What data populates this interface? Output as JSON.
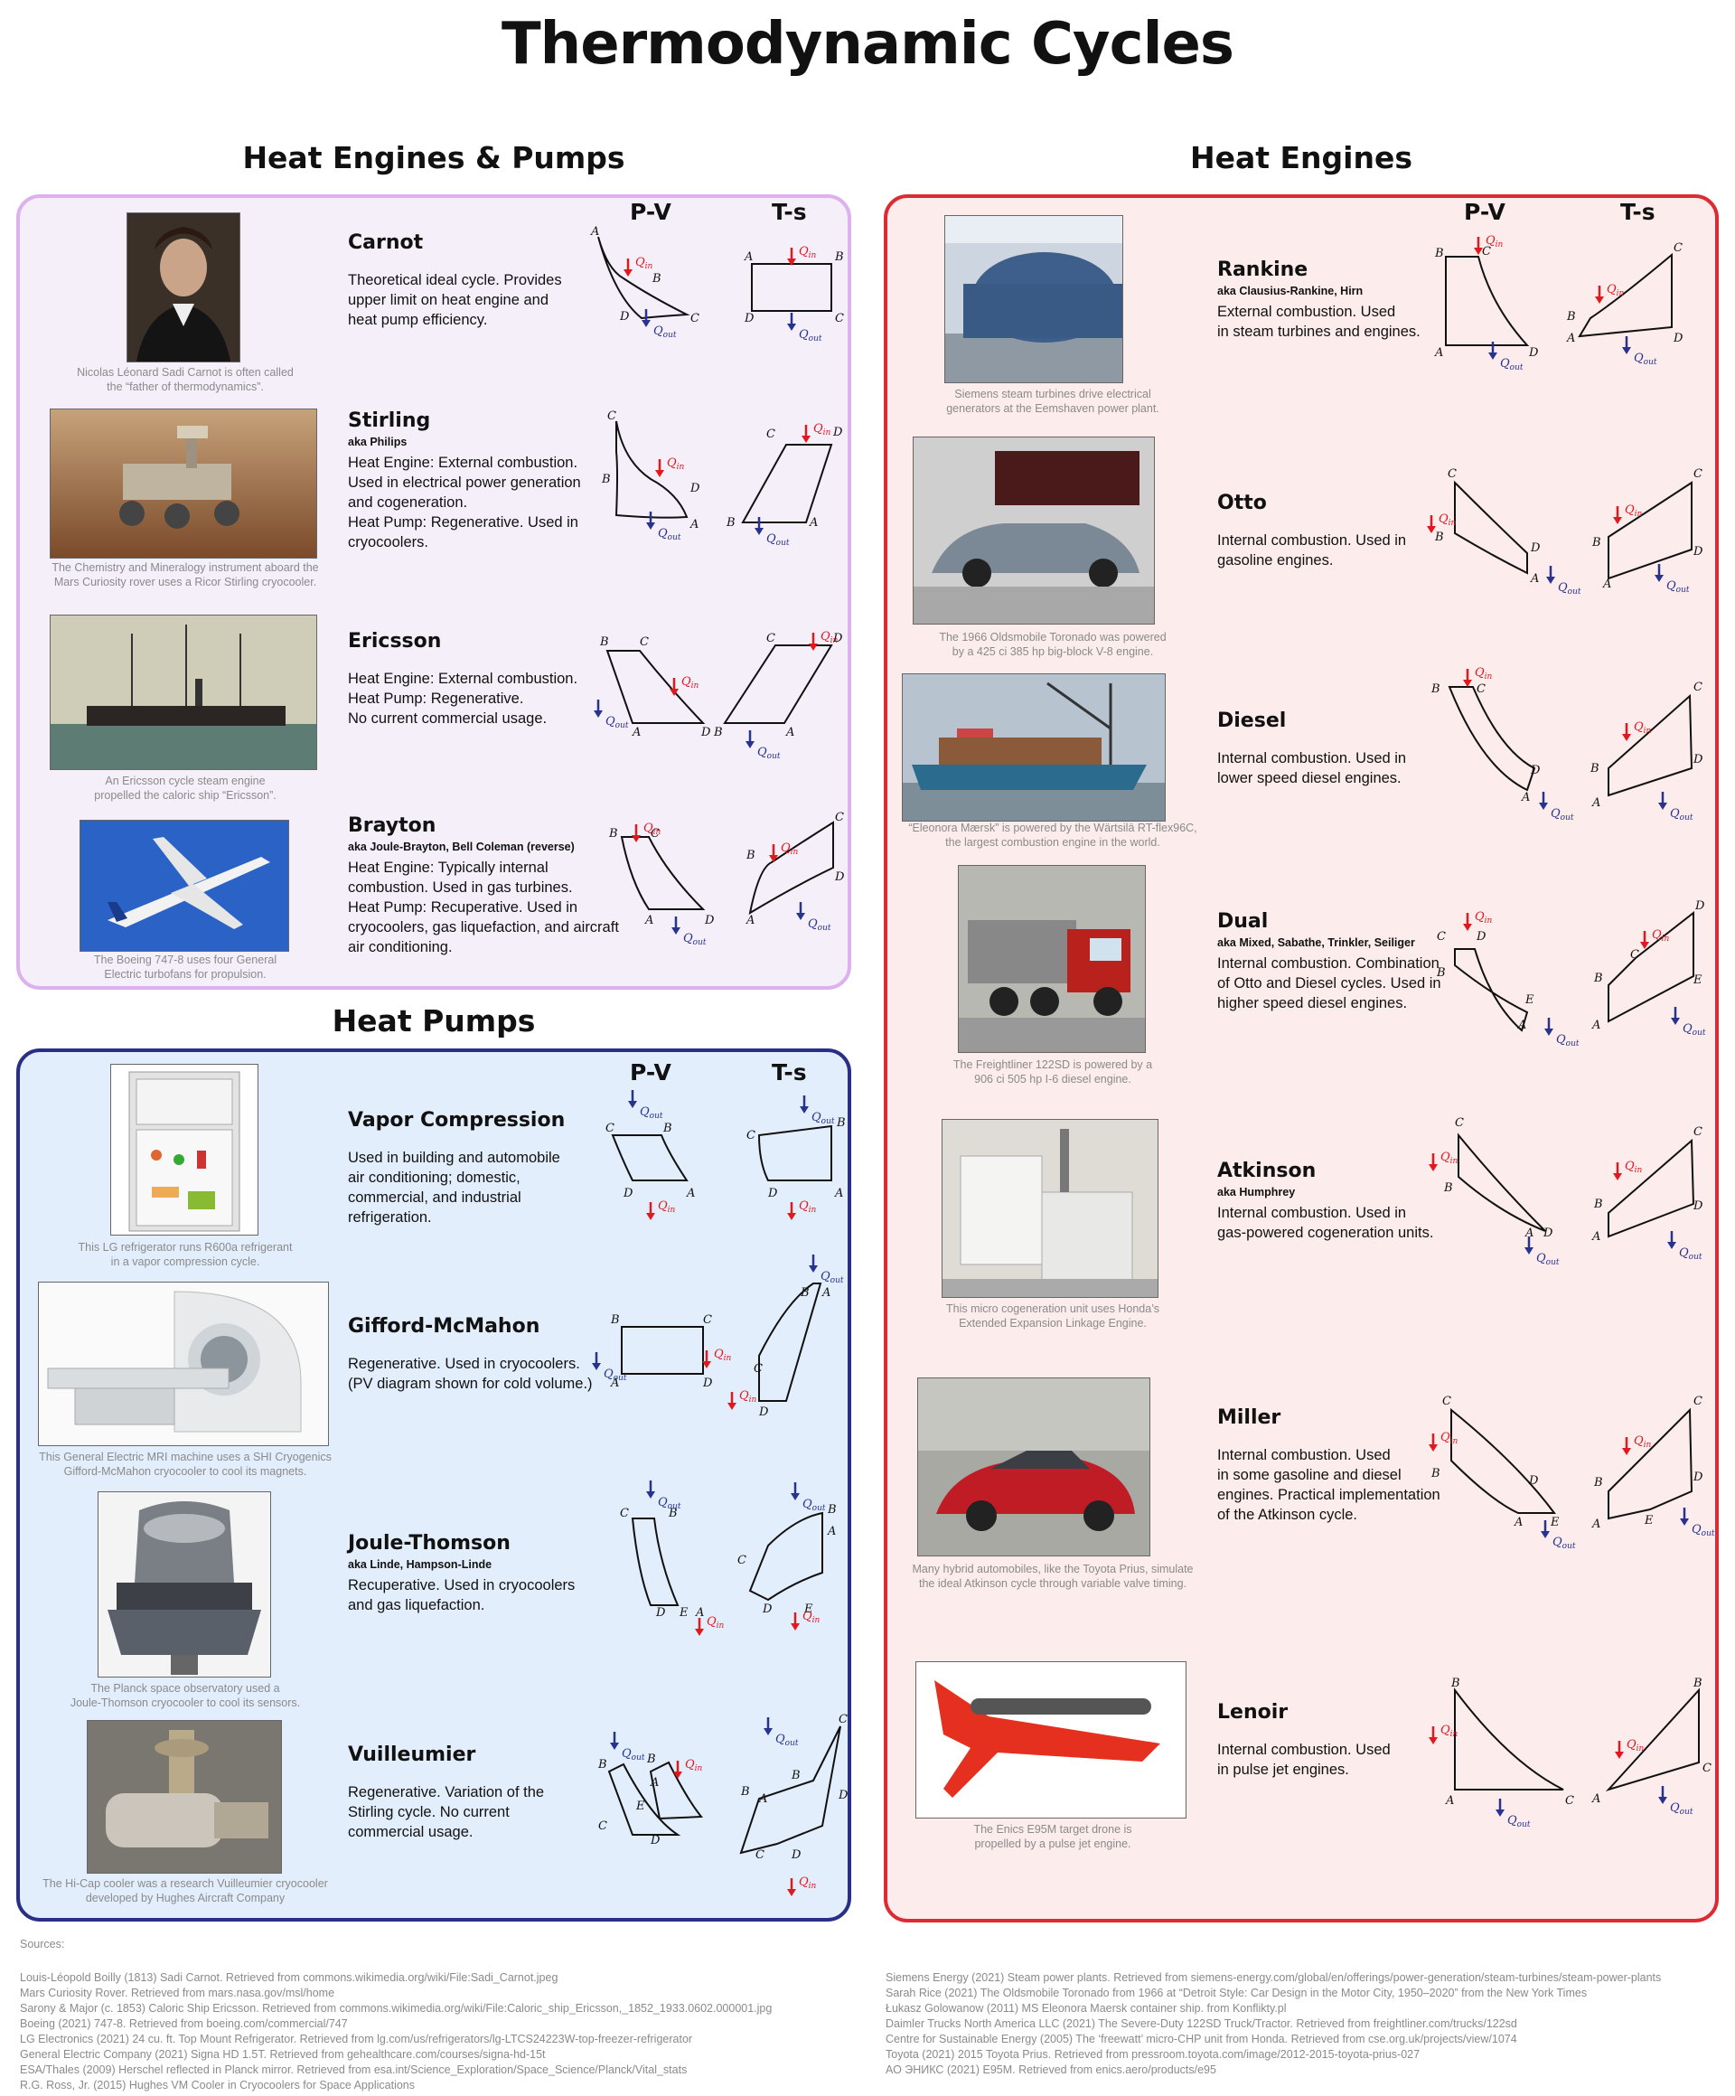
{
  "title": "Thermodynamic Cycles",
  "sections": {
    "engines_pumps": "Heat Engines & Pumps",
    "heat_engines": "Heat Engines",
    "heat_pumps": "Heat Pumps"
  },
  "axis_labels": {
    "pv": "P-V",
    "ts": "T-s"
  },
  "heat_labels": {
    "q": "Q",
    "in": "in",
    "out": "out"
  },
  "colors": {
    "in_arrow": "#e0191f",
    "out_arrow": "#27338e",
    "purple_border": "#dcb1ee",
    "blue_border": "#2a2f86",
    "red_border": "#dc2b33"
  },
  "cycles": {
    "carnot": {
      "name": "Carnot",
      "aka": "",
      "desc": [
        "Theoretical ideal cycle. Provides",
        "upper limit on heat engine and",
        "heat pump efficiency."
      ],
      "caption": [
        "Nicolas Léonard Sadi Carnot is often called",
        "the “father of thermodynamics”."
      ]
    },
    "stirling": {
      "name": "Stirling",
      "aka": "aka Philips",
      "desc": [
        "Heat Engine: External combustion.",
        "Used in electrical power generation",
        "and cogeneration.",
        "Heat Pump: Regenerative. Used in",
        "cryocoolers."
      ],
      "caption": [
        "The Chemistry and Mineralogy instrument aboard the",
        "Mars Curiosity rover uses a Ricor Stirling cryocooler."
      ]
    },
    "ericsson": {
      "name": "Ericsson",
      "aka": "",
      "desc": [
        "Heat Engine: External combustion.",
        "Heat Pump: Regenerative.",
        "No current commercial usage."
      ],
      "caption": [
        "An Ericsson cycle steam engine",
        "propelled the caloric ship “Ericsson”."
      ]
    },
    "brayton": {
      "name": "Brayton",
      "aka": "aka Joule-Brayton, Bell Coleman (reverse)",
      "desc": [
        "Heat Engine: Typically internal",
        "combustion. Used in gas turbines.",
        "Heat Pump: Recuperative. Used in",
        "cryocoolers, gas liquefaction, and aircraft",
        "air conditioning."
      ],
      "caption": [
        "The Boeing 747-8 uses four General",
        "Electric turbofans for propulsion."
      ]
    },
    "vapor": {
      "name": "Vapor Compression",
      "aka": "",
      "desc": [
        "Used in building and automobile",
        "air conditioning; domestic,",
        "commercial, and industrial",
        "refrigeration."
      ],
      "caption": [
        "This LG refrigerator runs R600a refrigerant",
        "in a vapor compression cycle."
      ]
    },
    "gifford": {
      "name": "Gifford-McMahon",
      "aka": "",
      "desc": [
        "Regenerative. Used in cryocoolers.",
        "(PV diagram shown for cold volume.)"
      ],
      "caption": [
        "This General Electric MRI machine uses a SHI Cryogenics",
        "Gifford-McMahon cryocooler to cool its magnets."
      ]
    },
    "joule": {
      "name": "Joule-Thomson",
      "aka": "aka Linde, Hampson-Linde",
      "desc": [
        "Recuperative. Used in cryocoolers",
        "and gas liquefaction."
      ],
      "caption": [
        "The Planck space observatory used a",
        "Joule-Thomson cryocooler to cool its sensors."
      ]
    },
    "vuilleumier": {
      "name": "Vuilleumier",
      "aka": "",
      "desc": [
        "Regenerative. Variation of the",
        "Stirling cycle. No current",
        "commercial usage."
      ],
      "caption": [
        "The Hi-Cap cooler was a research Vuilleumier cryocooler",
        "developed by Hughes Aircraft Company"
      ]
    },
    "rankine": {
      "name": "Rankine",
      "aka": "aka Clausius-Rankine, Hirn",
      "desc": [
        "External combustion. Used",
        "in steam turbines and engines."
      ],
      "caption": [
        "Siemens steam turbines drive electrical",
        "generators at the Eemshaven power plant."
      ]
    },
    "otto": {
      "name": "Otto",
      "aka": "",
      "desc": [
        "Internal combustion. Used in",
        "gasoline engines."
      ],
      "caption": [
        "The 1966 Oldsmobile Toronado was powered",
        "by a 425 ci 385 hp big-block V-8 engine."
      ]
    },
    "diesel": {
      "name": "Diesel",
      "aka": "",
      "desc": [
        "Internal combustion. Used in",
        "lower speed diesel engines."
      ],
      "caption": [
        "“Eleonora Mærsk” is powered by the Wärtsilä RT-flex96C,",
        "the largest combustion engine in the world."
      ]
    },
    "dual": {
      "name": "Dual",
      "aka": "aka Mixed, Sabathe, Trinkler, Seiliger",
      "desc": [
        "Internal combustion. Combination",
        "of Otto and Diesel cycles. Used in",
        "higher speed diesel engines."
      ],
      "caption": [
        "The Freightliner 122SD is powered by a",
        "906 ci 505 hp I-6 diesel engine."
      ]
    },
    "atkinson": {
      "name": "Atkinson",
      "aka": "aka Humphrey",
      "desc": [
        "Internal combustion. Used in",
        "gas-powered cogeneration units."
      ],
      "caption": [
        "This micro cogeneration unit uses Honda’s",
        "Extended Expansion Linkage Engine."
      ]
    },
    "miller": {
      "name": "Miller",
      "aka": "",
      "desc": [
        "Internal combustion. Used",
        "in some gasoline and diesel",
        "engines. Practical implementation",
        "of the Atkinson cycle."
      ],
      "caption": [
        "Many hybrid automobiles, like the Toyota Prius, simulate",
        "the ideal Atkinson cycle through variable valve timing."
      ]
    },
    "lenoir": {
      "name": "Lenoir",
      "aka": "",
      "desc": [
        "Internal combustion. Used",
        "in pulse jet engines."
      ],
      "caption": [
        "The Enics E95M target drone is",
        "propelled by a pulse jet engine."
      ]
    }
  },
  "sources": {
    "heading": "Sources:",
    "left": [
      "Louis-Léopold Boilly (1813) Sadi Carnot. Retrieved from commons.wikimedia.org/wiki/File:Sadi_Carnot.jpeg",
      "Mars Curiosity Rover. Retrieved from mars.nasa.gov/msl/home",
      "Sarony & Major (c. 1853) Caloric Ship Ericsson. Retrieved from commons.wikimedia.org/wiki/File:Caloric_ship_Ericsson,_1852_1933.0602.000001.jpg",
      "Boeing (2021) 747-8. Retrieved from boeing.com/commercial/747",
      "LG Electronics (2021) 24 cu. ft. Top Mount Refrigerator. Retrieved from lg.com/us/refrigerators/lg-LTCS24223W-top-freezer-refrigerator",
      "General Electric Company (2021) Signa HD 1.5T. Retrieved from gehealthcare.com/courses/signa-hd-15t",
      "ESA/Thales (2009) Herschel reflected in Planck mirror. Retrieved from esa.int/Science_Exploration/Space_Science/Planck/Vital_stats",
      "R.G. Ross, Jr. (2015) Hughes VM Cooler in Cryocoolers for Space Applications"
    ],
    "right": [
      "Siemens Energy (2021) Steam power plants. Retrieved from siemens-energy.com/global/en/offerings/power-generation/steam-turbines/steam-power-plants",
      "Sarah Rice (2021) The Oldsmobile Toronado from 1966 at “Detroit Style: Car Design in the Motor City, 1950–2020” from the New York Times",
      "Łukasz Golowanow (2011) MS Eleonora Maersk container ship. from Konflikty.pl",
      "Daimler Trucks North America LLC (2021) The Severe-Duty 122SD Truck/Tractor. Retrieved from freightliner.com/trucks/122sd",
      "Centre for Sustainable Energy (2005) The ‘freewatt’ micro-CHP unit from Honda. Retrieved from cse.org.uk/projects/view/1074",
      "Toyota (2021) 2015 Toyota Prius. Retrieved from pressroom.toyota.com/image/2012-2015-toyota-prius-027",
      "АО ЭНИКС (2021) E95M. Retrieved from enics.aero/products/e95"
    ]
  }
}
